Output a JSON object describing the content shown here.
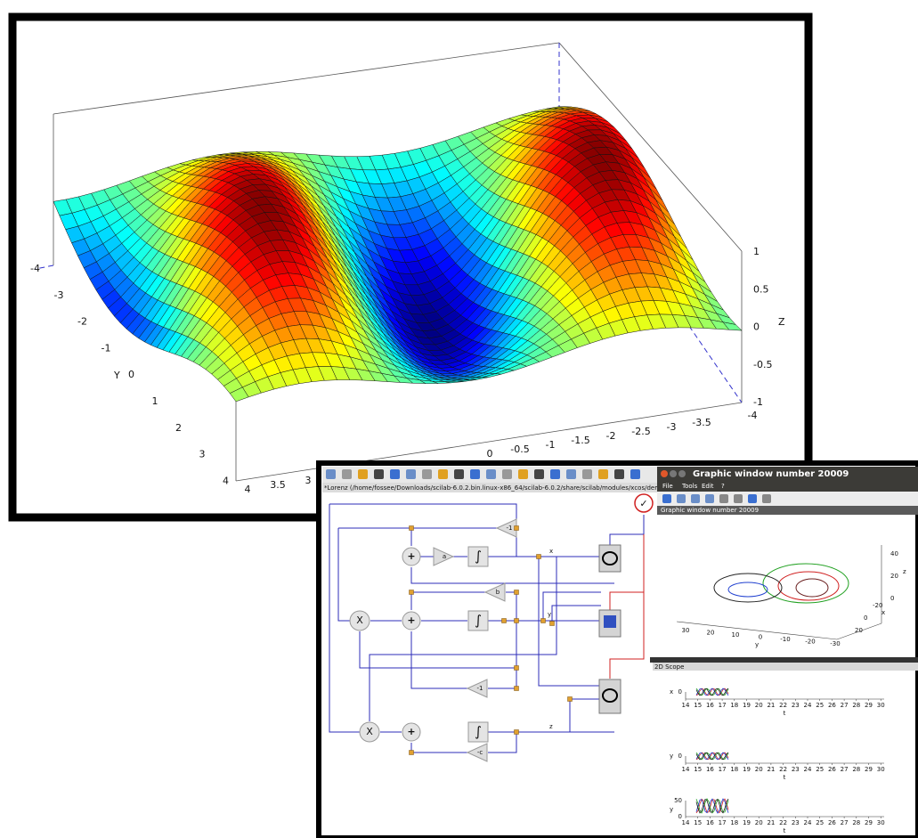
{
  "surface_plot": {
    "x_ticks": [
      "4",
      "3.5",
      "3",
      "0",
      "-0.5",
      "-1",
      "-1.5",
      "-2",
      "-2.5",
      "-3",
      "-3.5",
      "-4"
    ],
    "y_ticks": [
      "-4",
      "-3",
      "-2",
      "-1",
      "0",
      "1",
      "2",
      "3",
      "4"
    ],
    "z_ticks": [
      "1",
      "0.5",
      "0",
      "-0.5",
      "-1"
    ],
    "y_label": "Y",
    "z_label": "Z"
  },
  "xcos": {
    "title": "*Lorenz (/home/fossee/Downloads/scilab-6.0.2.bin.linux-x86_64/scilab-6.0.2/share/scilab/modules/xcos/demos/Lorenz.zcos) - X",
    "blocks": [
      "-1",
      "a",
      "b",
      "-1",
      "-c"
    ],
    "signals": [
      "x",
      "y",
      "z"
    ]
  },
  "graphic_window": {
    "title": "Graphic window number 20009",
    "menu": [
      "File",
      "Tools",
      "Edit",
      "?"
    ],
    "subtitle": "Graphic window number 20009",
    "plot3d": {
      "z_ticks": [
        "40",
        "20",
        "0"
      ],
      "y_ticks": [
        "30",
        "20",
        "10",
        "0",
        "-10",
        "-20",
        "-30"
      ],
      "x_ticks": [
        "20",
        "0",
        "-20"
      ],
      "x_label": "x",
      "y_label": "y",
      "z_label": "z"
    }
  },
  "scope": {
    "title": "2D Scope",
    "panels": [
      {
        "y_label": "x",
        "y_ticks": [
          "0"
        ]
      },
      {
        "y_label": "y",
        "y_ticks": [
          "0"
        ]
      },
      {
        "y_label": "y",
        "y_ticks": [
          "50",
          "0"
        ]
      }
    ],
    "x_ticks": [
      "14",
      "15",
      "16",
      "17",
      "18",
      "19",
      "20",
      "21",
      "22",
      "23",
      "24",
      "25",
      "26",
      "27",
      "28",
      "29",
      "30"
    ],
    "x_label": "t"
  }
}
